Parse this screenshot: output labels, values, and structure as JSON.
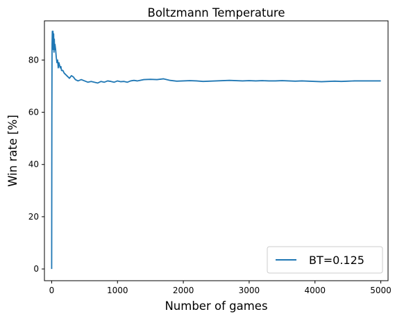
{
  "chart_data": {
    "type": "line",
    "title": "Boltzmann Temperature",
    "xlabel": "Number of games",
    "ylabel": "Win rate [%]",
    "xlim": [
      -110,
      5110
    ],
    "ylim": [
      -4.5,
      95
    ],
    "xticks": [
      0,
      1000,
      2000,
      3000,
      4000,
      5000
    ],
    "yticks": [
      0,
      20,
      40,
      60,
      80
    ],
    "grid": false,
    "legend_position": "lower-right",
    "series": [
      {
        "name": "BT=0.125",
        "color": "#1f77b4",
        "x": [
          0,
          3,
          6,
          10,
          15,
          20,
          25,
          30,
          35,
          40,
          45,
          50,
          60,
          70,
          80,
          90,
          100,
          110,
          120,
          130,
          140,
          150,
          170,
          190,
          210,
          230,
          250,
          270,
          300,
          330,
          360,
          400,
          450,
          500,
          550,
          600,
          650,
          700,
          750,
          800,
          850,
          900,
          950,
          1000,
          1050,
          1100,
          1150,
          1200,
          1250,
          1300,
          1400,
          1500,
          1600,
          1700,
          1800,
          1900,
          2000,
          2100,
          2200,
          2300,
          2400,
          2500,
          2600,
          2700,
          2800,
          2900,
          3000,
          3100,
          3200,
          3300,
          3400,
          3500,
          3600,
          3700,
          3800,
          3900,
          4000,
          4100,
          4200,
          4300,
          4400,
          4500,
          4600,
          4700,
          4800,
          4900,
          5000
        ],
        "y": [
          0,
          60,
          86,
          91,
          88,
          91,
          84,
          90,
          83,
          88,
          84,
          86,
          84,
          81,
          79,
          80,
          77,
          79,
          78,
          77,
          77.5,
          76,
          76,
          75,
          74.5,
          74,
          73.5,
          73,
          74,
          73.5,
          72.5,
          72,
          72.5,
          72,
          71.5,
          71.8,
          71.5,
          71.2,
          71.8,
          71.5,
          72,
          71.8,
          71.5,
          72,
          71.7,
          71.8,
          71.5,
          72,
          72.2,
          72,
          72.5,
          72.6,
          72.5,
          72.8,
          72.2,
          71.9,
          72,
          72.1,
          72,
          71.8,
          71.9,
          72,
          72.1,
          72.2,
          72.1,
          72,
          72.1,
          72,
          72.1,
          72,
          72,
          72.1,
          72,
          71.9,
          72,
          71.9,
          71.8,
          71.7,
          71.8,
          71.9,
          71.8,
          71.9,
          72,
          72,
          72,
          72,
          72
        ]
      }
    ]
  }
}
